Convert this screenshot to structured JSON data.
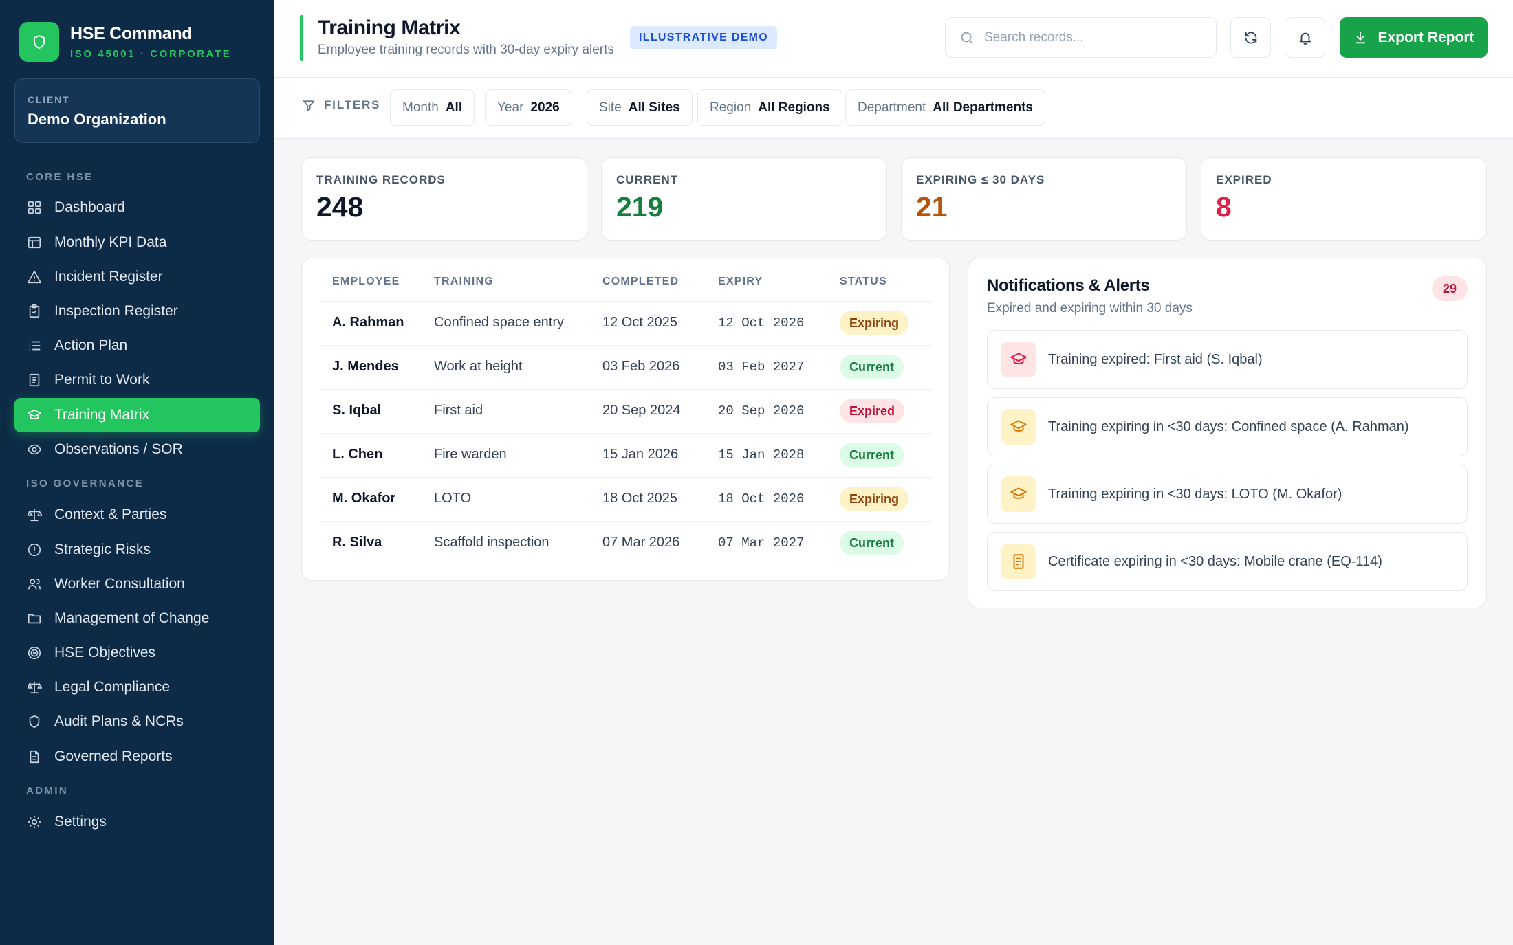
{
  "app": {
    "name": "HSE Command",
    "subtitle": "ISO 45001 · CORPORATE"
  },
  "client": {
    "label": "CLIENT",
    "name": "Demo Organization"
  },
  "sidebar": {
    "sections": [
      {
        "label": "CORE HSE",
        "items": [
          {
            "label": "Dashboard",
            "icon": "grid-icon"
          },
          {
            "label": "Monthly KPI Data",
            "icon": "table-icon"
          },
          {
            "label": "Incident Register",
            "icon": "warning-triangle-icon"
          },
          {
            "label": "Inspection Register",
            "icon": "clipboard-check-icon"
          },
          {
            "label": "Action Plan",
            "icon": "list-icon"
          },
          {
            "label": "Permit to Work",
            "icon": "document-icon"
          },
          {
            "label": "Training Matrix",
            "icon": "graduation-cap-icon",
            "active": true
          },
          {
            "label": "Observations / SOR",
            "icon": "eye-icon"
          }
        ]
      },
      {
        "label": "ISO GOVERNANCE",
        "items": [
          {
            "label": "Context & Parties",
            "icon": "scale-icon"
          },
          {
            "label": "Strategic Risks",
            "icon": "alert-circle-icon"
          },
          {
            "label": "Worker Consultation",
            "icon": "users-icon"
          },
          {
            "label": "Management of Change",
            "icon": "folder-icon"
          },
          {
            "label": "HSE Objectives",
            "icon": "target-icon"
          },
          {
            "label": "Legal Compliance",
            "icon": "scale-icon"
          },
          {
            "label": "Audit Plans & NCRs",
            "icon": "shield-icon"
          },
          {
            "label": "Governed Reports",
            "icon": "file-text-icon"
          }
        ]
      },
      {
        "label": "ADMIN",
        "items": [
          {
            "label": "Settings",
            "icon": "gear-icon"
          }
        ]
      }
    ]
  },
  "header": {
    "title": "Training Matrix",
    "subtitle": "Employee training records with 30-day expiry alerts",
    "badge": "ILLUSTRATIVE DEMO",
    "search_placeholder": "Search records...",
    "export_label": "Export Report"
  },
  "filters": {
    "label": "FILTERS",
    "items": [
      {
        "key": "Month",
        "value": "All"
      },
      {
        "key": "Year",
        "value": "2026"
      },
      {
        "key": "Site",
        "value": "All Sites"
      },
      {
        "key": "Region",
        "value": "All Regions"
      },
      {
        "key": "Department",
        "value": "All Departments"
      }
    ]
  },
  "kpis": [
    {
      "label": "TRAINING RECORDS",
      "value": "248",
      "color": "#0f172a"
    },
    {
      "label": "CURRENT",
      "value": "219",
      "color": "#15803d"
    },
    {
      "label": "EXPIRING ≤ 30 DAYS",
      "value": "21",
      "color": "#b45309"
    },
    {
      "label": "EXPIRED",
      "value": "8",
      "color": "#e11d48"
    }
  ],
  "table": {
    "columns": [
      "EMPLOYEE",
      "TRAINING",
      "COMPLETED",
      "EXPIRY",
      "STATUS"
    ],
    "rows": [
      {
        "employee": "A. Rahman",
        "training": "Confined space entry",
        "completed": "12 Oct 2025",
        "expiry": "12 Oct 2026",
        "status": "Expiring"
      },
      {
        "employee": "J. Mendes",
        "training": "Work at height",
        "completed": "03 Feb 2026",
        "expiry": "03 Feb 2027",
        "status": "Current"
      },
      {
        "employee": "S. Iqbal",
        "training": "First aid",
        "completed": "20 Sep 2024",
        "expiry": "20 Sep 2026",
        "status": "Expired"
      },
      {
        "employee": "L. Chen",
        "training": "Fire warden",
        "completed": "15 Jan 2026",
        "expiry": "15 Jan 2028",
        "status": "Current"
      },
      {
        "employee": "M. Okafor",
        "training": "LOTO",
        "completed": "18 Oct 2025",
        "expiry": "18 Oct 2026",
        "status": "Expiring"
      },
      {
        "employee": "R. Silva",
        "training": "Scaffold inspection",
        "completed": "07 Mar 2026",
        "expiry": "07 Mar 2027",
        "status": "Current"
      }
    ]
  },
  "notifications": {
    "title": "Notifications & Alerts",
    "subtitle": "Expired and expiring within 30 days",
    "count": "29",
    "items": [
      {
        "text": "Training expired: First aid (S. Iqbal)",
        "icon": "graduation-cap-icon",
        "tone": "red"
      },
      {
        "text": "Training expiring in <30 days: Confined space (A. Rahman)",
        "icon": "graduation-cap-icon",
        "tone": "amber"
      },
      {
        "text": "Training expiring in <30 days: LOTO (M. Okafor)",
        "icon": "graduation-cap-icon",
        "tone": "amber"
      },
      {
        "text": "Certificate expiring in <30 days: Mobile crane (EQ-114)",
        "icon": "file-text-icon",
        "tone": "amber"
      }
    ]
  }
}
